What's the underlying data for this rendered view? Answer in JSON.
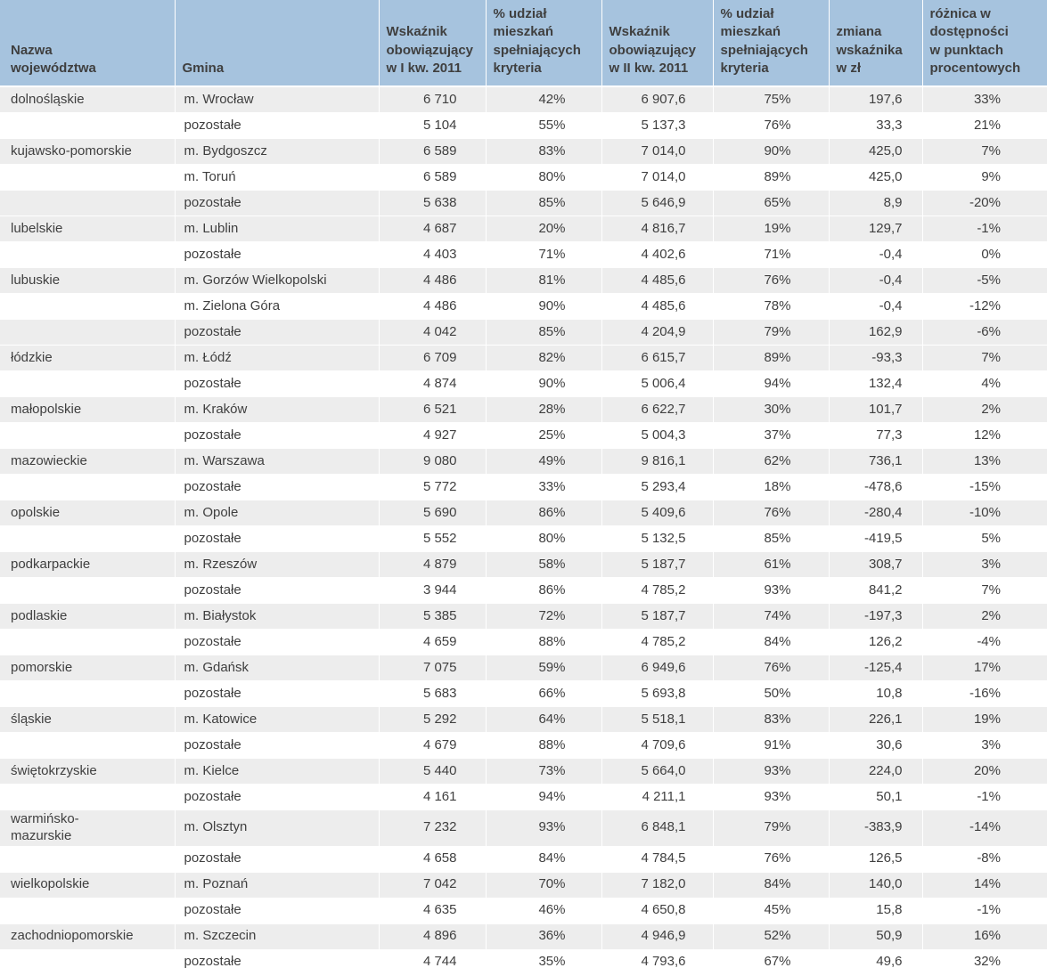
{
  "colors": {
    "header_bg": "#a6c3de",
    "stripe_bg": "#ededed",
    "text": "#3f3f3f",
    "row_separator": "#ffffff"
  },
  "chart_data": {
    "type": "table",
    "title": "",
    "columns": [
      "Nazwa\nwojewództwa",
      "Gmina",
      "Wskaźnik\nobowiązujący\nw I kw. 2011",
      "% udział\nmieszkań\nspełniających\nkryteria",
      "Wskaźnik\nobowiązujący\nw II kw. 2011",
      "% udział\nmieszkań\nspełniających\nkryteria",
      "zmiana\nwskaźnika\nw zł",
      "różnica w\ndostępności\nw punktach\nprocentowych"
    ],
    "rows": [
      {
        "w": "dolnośląskie",
        "g": "m. Wrocław",
        "vals": [
          "6 710",
          "42%",
          "6 907,6",
          "75%",
          "197,6",
          "33%"
        ]
      },
      {
        "w": "",
        "g": "pozostałe",
        "vals": [
          "5 104",
          "55%",
          "5 137,3",
          "76%",
          "33,3",
          "21%"
        ]
      },
      {
        "w": "kujawsko-pomorskie",
        "g": "m. Bydgoszcz",
        "vals": [
          "6 589",
          "83%",
          "7 014,0",
          "90%",
          "425,0",
          "7%"
        ]
      },
      {
        "w": "",
        "g": "m. Toruń",
        "vals": [
          "6 589",
          "80%",
          "7 014,0",
          "89%",
          "425,0",
          "9%"
        ]
      },
      {
        "w": "",
        "g": "pozostałe",
        "vals": [
          "5 638",
          "85%",
          "5 646,9",
          "65%",
          "8,9",
          "-20%"
        ]
      },
      {
        "w": "lubelskie",
        "g": "m. Lublin",
        "vals": [
          "4 687",
          "20%",
          "4 816,7",
          "19%",
          "129,7",
          "-1%"
        ]
      },
      {
        "w": "",
        "g": "pozostałe",
        "vals": [
          "4 403",
          "71%",
          "4 402,6",
          "71%",
          "-0,4",
          "0%"
        ]
      },
      {
        "w": "lubuskie",
        "g": "m. Gorzów Wielkopolski",
        "vals": [
          "4 486",
          "81%",
          "4 485,6",
          "76%",
          "-0,4",
          "-5%"
        ]
      },
      {
        "w": "",
        "g": "m. Zielona Góra",
        "vals": [
          "4 486",
          "90%",
          "4 485,6",
          "78%",
          "-0,4",
          "-12%"
        ]
      },
      {
        "w": "",
        "g": "pozostałe",
        "vals": [
          "4 042",
          "85%",
          "4 204,9",
          "79%",
          "162,9",
          "-6%"
        ]
      },
      {
        "w": "łódzkie",
        "g": "m. Łódź",
        "vals": [
          "6 709",
          "82%",
          "6 615,7",
          "89%",
          "-93,3",
          "7%"
        ]
      },
      {
        "w": "",
        "g": "pozostałe",
        "vals": [
          "4 874",
          "90%",
          "5 006,4",
          "94%",
          "132,4",
          "4%"
        ]
      },
      {
        "w": "małopolskie",
        "g": "m. Kraków",
        "vals": [
          "6 521",
          "28%",
          "6 622,7",
          "30%",
          "101,7",
          "2%"
        ]
      },
      {
        "w": "",
        "g": "pozostałe",
        "vals": [
          "4 927",
          "25%",
          "5 004,3",
          "37%",
          "77,3",
          "12%"
        ]
      },
      {
        "w": "mazowieckie",
        "g": "m. Warszawa",
        "vals": [
          "9 080",
          "49%",
          "9 816,1",
          "62%",
          "736,1",
          "13%"
        ]
      },
      {
        "w": "",
        "g": "pozostałe",
        "vals": [
          "5 772",
          "33%",
          "5 293,4",
          "18%",
          "-478,6",
          "-15%"
        ]
      },
      {
        "w": "opolskie",
        "g": "m. Opole",
        "vals": [
          "5 690",
          "86%",
          "5 409,6",
          "76%",
          "-280,4",
          "-10%"
        ]
      },
      {
        "w": "",
        "g": "pozostałe",
        "vals": [
          "5 552",
          "80%",
          "5 132,5",
          "85%",
          "-419,5",
          "5%"
        ]
      },
      {
        "w": "podkarpackie",
        "g": "m. Rzeszów",
        "vals": [
          "4 879",
          "58%",
          "5 187,7",
          "61%",
          "308,7",
          "3%"
        ]
      },
      {
        "w": "",
        "g": "pozostałe",
        "vals": [
          "3 944",
          "86%",
          "4 785,2",
          "93%",
          "841,2",
          "7%"
        ]
      },
      {
        "w": "podlaskie",
        "g": "m. Białystok",
        "vals": [
          "5 385",
          "72%",
          "5 187,7",
          "74%",
          "-197,3",
          "2%"
        ]
      },
      {
        "w": "",
        "g": "pozostałe",
        "vals": [
          "4 659",
          "88%",
          "4 785,2",
          "84%",
          "126,2",
          "-4%"
        ]
      },
      {
        "w": "pomorskie",
        "g": "m. Gdańsk",
        "vals": [
          "7 075",
          "59%",
          "6 949,6",
          "76%",
          "-125,4",
          "17%"
        ]
      },
      {
        "w": "",
        "g": "pozostałe",
        "vals": [
          "5 683",
          "66%",
          "5 693,8",
          "50%",
          "10,8",
          "-16%"
        ]
      },
      {
        "w": "śląskie",
        "g": "m. Katowice",
        "vals": [
          "5 292",
          "64%",
          "5 518,1",
          "83%",
          "226,1",
          "19%"
        ]
      },
      {
        "w": "",
        "g": "pozostałe",
        "vals": [
          "4 679",
          "88%",
          "4 709,6",
          "91%",
          "30,6",
          "3%"
        ]
      },
      {
        "w": "świętokrzyskie",
        "g": "m. Kielce",
        "vals": [
          "5 440",
          "73%",
          "5 664,0",
          "93%",
          "224,0",
          "20%"
        ]
      },
      {
        "w": "",
        "g": "pozostałe",
        "vals": [
          "4 161",
          "94%",
          "4 211,1",
          "93%",
          "50,1",
          "-1%"
        ]
      },
      {
        "w": "warmińsko-\nmazurskie",
        "g": "m. Olsztyn",
        "vals": [
          "7 232",
          "93%",
          "6 848,1",
          "79%",
          "-383,9",
          "-14%"
        ]
      },
      {
        "w": "",
        "g": "pozostałe",
        "vals": [
          "4 658",
          "84%",
          "4 784,5",
          "76%",
          "126,5",
          "-8%"
        ]
      },
      {
        "w": "wielkopolskie",
        "g": "m. Poznań",
        "vals": [
          "7 042",
          "70%",
          "7 182,0",
          "84%",
          "140,0",
          "14%"
        ]
      },
      {
        "w": "",
        "g": "pozostałe",
        "vals": [
          "4 635",
          "46%",
          "4 650,8",
          "45%",
          "15,8",
          "-1%"
        ]
      },
      {
        "w": "zachodniopomorskie",
        "g": "m. Szczecin",
        "vals": [
          "4 896",
          "36%",
          "4 946,9",
          "52%",
          "50,9",
          "16%"
        ]
      },
      {
        "w": "",
        "g": "pozostałe",
        "vals": [
          "4 744",
          "35%",
          "4 793,6",
          "67%",
          "49,6",
          "32%"
        ]
      }
    ]
  }
}
